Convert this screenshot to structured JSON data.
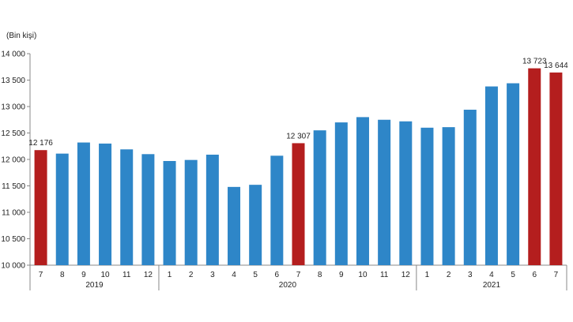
{
  "chart_data": {
    "type": "bar",
    "unit_label": "(Bin kişi)",
    "ylim": [
      10000,
      14000
    ],
    "yticks": [
      10000,
      10500,
      11000,
      11500,
      12000,
      12500,
      13000,
      13500,
      14000
    ],
    "ytick_labels": [
      "10 000",
      "10 500",
      "11 000",
      "11 500",
      "12 000",
      "12 500",
      "13 000",
      "13 500",
      "14 000"
    ],
    "grid": false,
    "categories": [
      "7",
      "8",
      "9",
      "10",
      "11",
      "12",
      "1",
      "2",
      "3",
      "4",
      "5",
      "6",
      "7",
      "8",
      "9",
      "10",
      "11",
      "12",
      "1",
      "2",
      "3",
      "4",
      "5",
      "6",
      "7"
    ],
    "values": [
      12176,
      12110,
      12320,
      12300,
      12190,
      12100,
      11970,
      11990,
      12090,
      11480,
      11520,
      12070,
      12307,
      12550,
      12700,
      12800,
      12750,
      12720,
      12600,
      12610,
      12940,
      13380,
      13440,
      13723,
      13644
    ],
    "highlight": [
      true,
      false,
      false,
      false,
      false,
      false,
      false,
      false,
      false,
      false,
      false,
      false,
      true,
      false,
      false,
      false,
      false,
      false,
      false,
      false,
      false,
      false,
      false,
      true,
      true
    ],
    "data_labels": [
      "12 176",
      "",
      "",
      "",
      "",
      "",
      "",
      "",
      "",
      "",
      "",
      "",
      "12 307",
      "",
      "",
      "",
      "",
      "",
      "",
      "",
      "",
      "",
      "",
      "13 723",
      "13 644"
    ],
    "groups": [
      {
        "label": "2019",
        "start": 0,
        "end": 5
      },
      {
        "label": "2020",
        "start": 6,
        "end": 17
      },
      {
        "label": "2021",
        "start": 18,
        "end": 24
      }
    ],
    "colors": {
      "bar": "#2e86c8",
      "highlight": "#b41e1e",
      "axis": "#888888"
    }
  }
}
